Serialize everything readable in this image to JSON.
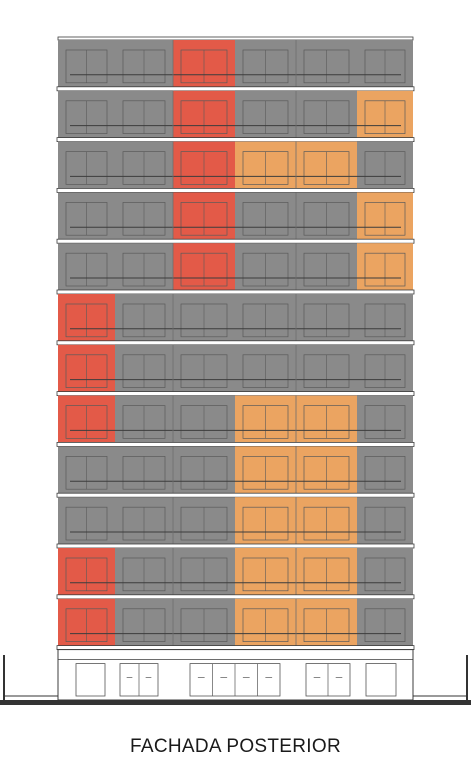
{
  "caption": "FACHADA POSTERIOR",
  "colors": {
    "wall": "#8a8a8a",
    "slab": "#ffffff",
    "line": "#3c3c3c",
    "highlight_red": "#e35a48",
    "highlight_orange": "#eba461",
    "ground": "#333333"
  },
  "floors": [
    [
      "gray",
      "gray",
      "red",
      "gray",
      "gray",
      "gray"
    ],
    [
      "gray",
      "gray",
      "red",
      "gray",
      "gray",
      "orange"
    ],
    [
      "gray",
      "gray",
      "red",
      "orange",
      "orange",
      "gray"
    ],
    [
      "gray",
      "gray",
      "red",
      "gray",
      "gray",
      "orange"
    ],
    [
      "gray",
      "gray",
      "red",
      "gray",
      "gray",
      "orange"
    ],
    [
      "red",
      "gray",
      "gray",
      "gray",
      "gray",
      "gray"
    ],
    [
      "red",
      "gray",
      "gray",
      "gray",
      "gray",
      "gray"
    ],
    [
      "red",
      "gray",
      "gray",
      "orange",
      "orange",
      "gray"
    ],
    [
      "gray",
      "gray",
      "gray",
      "orange",
      "orange",
      "gray"
    ],
    [
      "gray",
      "gray",
      "gray",
      "orange",
      "orange",
      "gray"
    ],
    [
      "red",
      "gray",
      "gray",
      "orange",
      "orange",
      "gray"
    ],
    [
      "red",
      "gray",
      "gray",
      "orange",
      "orange",
      "gray"
    ]
  ]
}
